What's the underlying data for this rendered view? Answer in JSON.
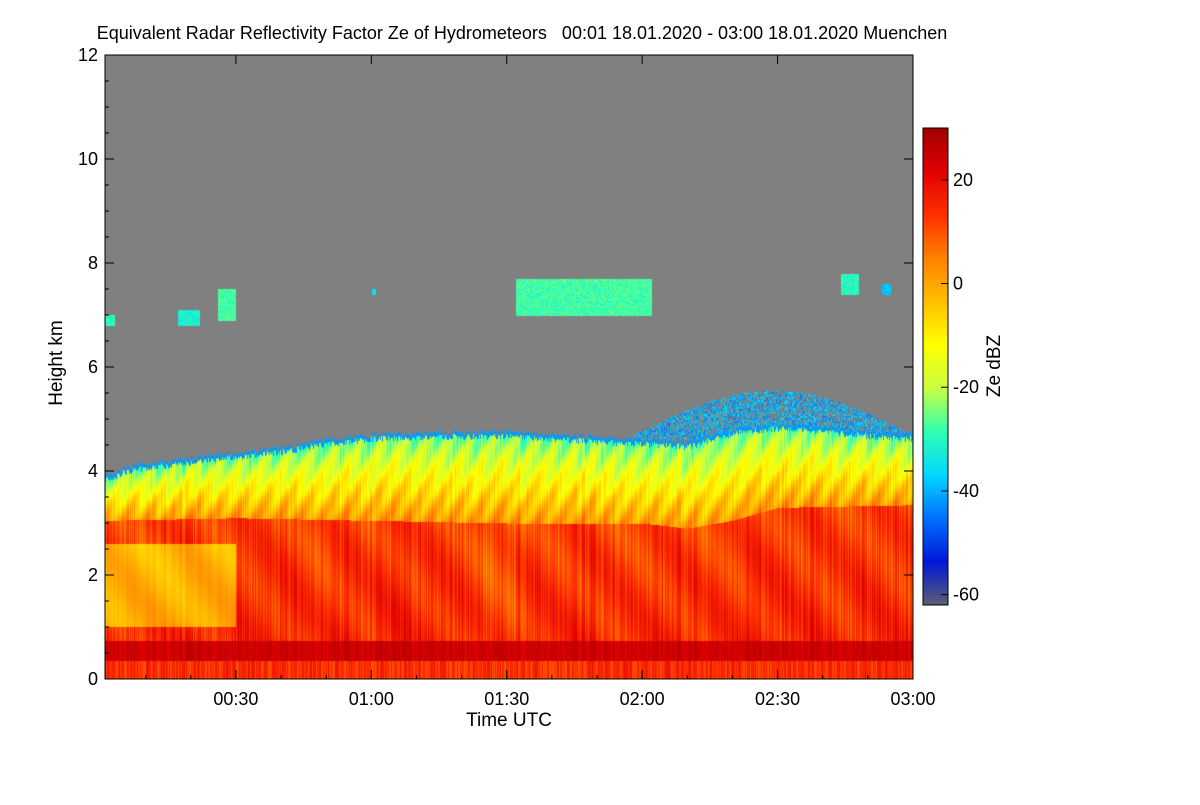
{
  "chart_data": {
    "type": "heatmap",
    "title": "Equivalent Radar Reflectivity Factor Ze of Hydrometeors   00:01 18.01.2020 - 03:00 18.01.2020 Muenchen",
    "xlabel": "Time UTC",
    "ylabel": "Height km",
    "colorbar_label": "Ze dBZ",
    "x_ticks": [
      "00:30",
      "01:00",
      "01:30",
      "02:00",
      "02:30",
      "03:00"
    ],
    "x_tick_minutes": [
      30,
      60,
      90,
      120,
      150,
      180
    ],
    "xlim_minutes": [
      1,
      180
    ],
    "y_ticks": [
      "0",
      "2",
      "4",
      "6",
      "8",
      "10",
      "12"
    ],
    "y_tick_values": [
      0,
      2,
      4,
      6,
      8,
      10,
      12
    ],
    "ylim": [
      0,
      12
    ],
    "colorbar_ticks": [
      "20",
      "0",
      "-20",
      "-40",
      "-60"
    ],
    "colorbar_tick_values": [
      20,
      0,
      -20,
      -40,
      -60
    ],
    "colorbar_range": [
      -62,
      30
    ],
    "colors": {
      "no_signal": "#808080",
      "colormap": [
        "#5e5e72",
        "#0018d8",
        "#0070ff",
        "#00d8ff",
        "#30ffb0",
        "#c8ff40",
        "#ffff00",
        "#ffc000",
        "#ff8000",
        "#ff3000",
        "#e00000",
        "#a00000"
      ]
    },
    "features": {
      "main_layer_top_km": [
        [
          1,
          3.9
        ],
        [
          5,
          4.05
        ],
        [
          10,
          4.15
        ],
        [
          20,
          4.25
        ],
        [
          30,
          4.35
        ],
        [
          40,
          4.45
        ],
        [
          50,
          4.6
        ],
        [
          60,
          4.7
        ],
        [
          70,
          4.72
        ],
        [
          80,
          4.75
        ],
        [
          90,
          4.75
        ],
        [
          100,
          4.7
        ],
        [
          110,
          4.65
        ],
        [
          120,
          4.6
        ],
        [
          130,
          4.55
        ],
        [
          140,
          4.8
        ],
        [
          150,
          4.9
        ],
        [
          160,
          4.85
        ],
        [
          170,
          4.75
        ],
        [
          180,
          4.7
        ]
      ],
      "melting_layer_km": [
        [
          1,
          3.05
        ],
        [
          30,
          3.1
        ],
        [
          60,
          3.05
        ],
        [
          90,
          3.0
        ],
        [
          120,
          3.0
        ],
        [
          130,
          2.9
        ],
        [
          140,
          3.05
        ],
        [
          150,
          3.3
        ],
        [
          180,
          3.35
        ]
      ],
      "bright_band_km": [
        0.35,
        0.75
      ],
      "cirrus_patches": [
        {
          "minute_start": 1,
          "minute_end": 3,
          "height_km": [
            6.8,
            7.0
          ],
          "ze_dbz": -30
        },
        {
          "minute_start": 17,
          "minute_end": 22,
          "height_km": [
            6.8,
            7.1
          ],
          "ze_dbz": -32
        },
        {
          "minute_start": 26,
          "minute_end": 30,
          "height_km": [
            6.9,
            7.5
          ],
          "ze_dbz": -28
        },
        {
          "minute_start": 60,
          "minute_end": 61,
          "height_km": [
            7.4,
            7.5
          ],
          "ze_dbz": -35
        },
        {
          "minute_start": 92,
          "minute_end": 122,
          "height_km": [
            7.0,
            7.7
          ],
          "ze_dbz": -28
        },
        {
          "minute_start": 164,
          "minute_end": 168,
          "height_km": [
            7.4,
            7.8
          ],
          "ze_dbz": -30
        },
        {
          "minute_start": 173,
          "minute_end": 175,
          "height_km": [
            7.4,
            7.6
          ],
          "ze_dbz": -38
        }
      ],
      "upper_echo_band": {
        "minute_start": 118,
        "minute_end": 180,
        "top_km": 5.55,
        "ze_dbz": -40
      }
    }
  }
}
